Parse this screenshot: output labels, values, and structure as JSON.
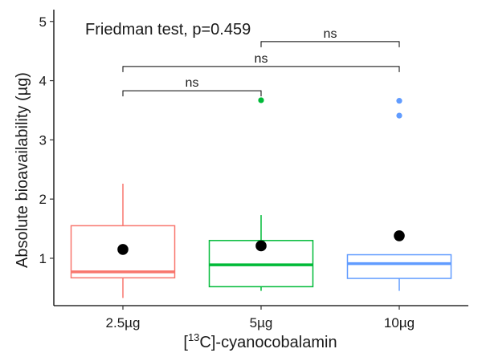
{
  "chart_data": {
    "type": "box",
    "annotation": "Friedman test, p=0.459",
    "xlabel": {
      "pre": "[",
      "sup": "13",
      "post": "C]-cyanocobalamin"
    },
    "ylabel": "Absolute bioavailability (µg)",
    "ylim": [
      0.2,
      5.2
    ],
    "yticks": [
      1,
      2,
      3,
      4,
      5
    ],
    "categories": [
      "2.5µg",
      "5µg",
      "10µg"
    ],
    "colors": [
      "#F8766D",
      "#00BA38",
      "#619CFF"
    ],
    "boxes": [
      {
        "category": "2.5µg",
        "lower_whisker": 0.33,
        "q1": 0.67,
        "median": 0.77,
        "q3": 1.55,
        "upper_whisker": 2.26,
        "mean": 1.15,
        "outliers": []
      },
      {
        "category": "5µg",
        "lower_whisker": 0.45,
        "q1": 0.52,
        "median": 0.89,
        "q3": 1.3,
        "upper_whisker": 1.73,
        "mean": 1.21,
        "outliers": [
          3.67
        ]
      },
      {
        "category": "10µg",
        "lower_whisker": 0.45,
        "q1": 0.66,
        "median": 0.91,
        "q3": 1.06,
        "upper_whisker": 1.06,
        "mean": 1.38,
        "outliers": [
          3.41,
          3.66
        ]
      }
    ],
    "comparisons": [
      {
        "from": 0,
        "to": 1,
        "y": 3.83,
        "label": "ns"
      },
      {
        "from": 0,
        "to": 2,
        "y": 4.24,
        "label": "ns"
      },
      {
        "from": 1,
        "to": 2,
        "y": 4.66,
        "label": "ns"
      }
    ]
  }
}
